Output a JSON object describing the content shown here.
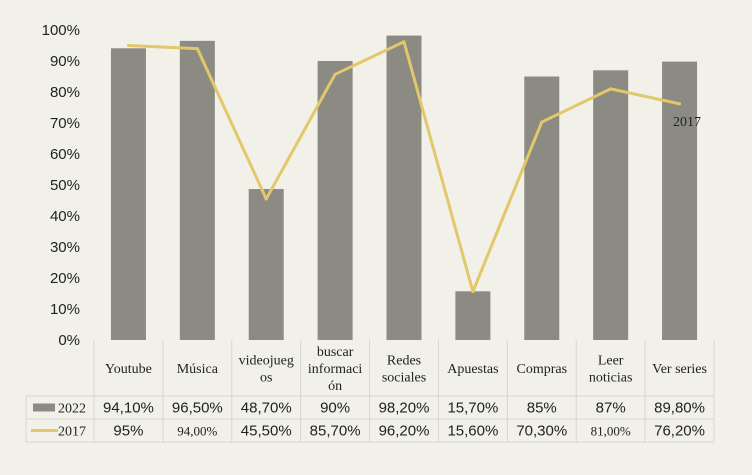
{
  "chart_data": {
    "type": "bar",
    "categories": [
      [
        "Youtube"
      ],
      [
        "Música"
      ],
      [
        "videojueg",
        "os"
      ],
      [
        "buscar",
        "informaci",
        "ón"
      ],
      [
        "Redes",
        "sociales"
      ],
      [
        "Apuestas"
      ],
      [
        "Compras"
      ],
      [
        "Leer",
        "noticias"
      ],
      [
        "Ver series"
      ]
    ],
    "series": [
      {
        "name": "2022",
        "kind": "bar",
        "color": "#8b8b83",
        "values": [
          94.1,
          96.5,
          48.7,
          90,
          98.2,
          15.7,
          85,
          87,
          89.8
        ],
        "labels": [
          "94,10%",
          "96,50%",
          "48,70%",
          "90%",
          "98,20%",
          "15,70%",
          "85%",
          "87%",
          "89,80%"
        ]
      },
      {
        "name": "2017",
        "kind": "line",
        "color": "#e2c86a",
        "values": [
          95,
          94,
          45.5,
          85.7,
          96.2,
          15.6,
          70.3,
          81,
          76.2
        ],
        "labels": [
          "95%",
          "94,00%",
          "45,50%",
          "85,70%",
          "96,20%",
          "15,60%",
          "70,30%",
          "81,00%",
          "76,20%"
        ]
      }
    ],
    "ylim": [
      0,
      100
    ],
    "yticks": [
      "0%",
      "10%",
      "20%",
      "30%",
      "40%",
      "50%",
      "60%",
      "70%",
      "80%",
      "90%",
      "100%"
    ],
    "annotation": "2017",
    "data_table": true,
    "grid": false
  }
}
